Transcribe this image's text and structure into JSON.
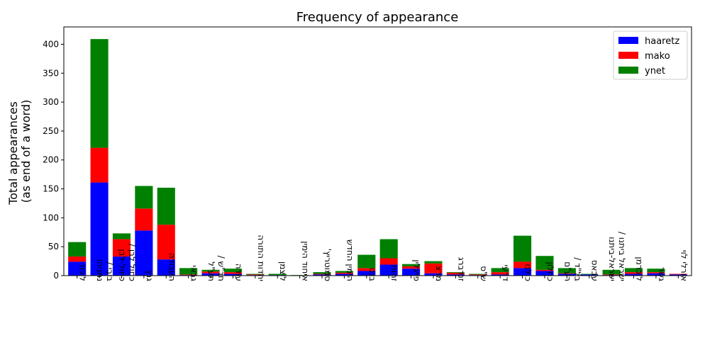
{
  "chart_data": {
    "type": "bar",
    "stacked": true,
    "title": "Frequency of appearance",
    "xlabel": "",
    "ylabel": "Total appearances\n(as end of a word)",
    "ylim": [
      0,
      430
    ],
    "yticks": [
      0,
      50,
      100,
      150,
      200,
      250,
      300,
      350,
      400
    ],
    "legend_position": "top-right",
    "categories": [
      "ליכוד",
      "ביבי / נתניהו",
      "כחול לבן / כחול-לבן",
      "גנץ",
      "העבודה",
      "גבאי",
      "חד\"ש / תע\"ל",
      "עודה",
      "יהדות התורה",
      "ליצמן",
      "איחוד הימין",
      "סמוטריץ'",
      "הימין החדש",
      "בנט",
      "זהות",
      "פייגלין",
      "מרצ",
      "זנדברג",
      "ש\"ס",
      "דרעי",
      "כולנו",
      "כחלון",
      "בל\"ד / רע\"ם",
      "עבאס",
      "ישראל ביתנו / ישראל-ביתנו",
      "ליברמן",
      "גשר",
      "אורלי לוי"
    ],
    "series": [
      {
        "name": "haaretz",
        "color": "#0000ff",
        "values": [
          24,
          161,
          33,
          78,
          28,
          1,
          4,
          3,
          1,
          1,
          0,
          2,
          3,
          8,
          19,
          12,
          4,
          2,
          1,
          2,
          13,
          8,
          3,
          2,
          1,
          3,
          4,
          2
        ]
      },
      {
        "name": "mako",
        "color": "#ff0000",
        "values": [
          9,
          60,
          30,
          38,
          60,
          1,
          3,
          3,
          1,
          0,
          0,
          1,
          2,
          5,
          11,
          4,
          17,
          3,
          1,
          4,
          11,
          2,
          1,
          0,
          1,
          3,
          2,
          1
        ]
      },
      {
        "name": "ynet",
        "color": "#008000",
        "values": [
          25,
          188,
          10,
          39,
          64,
          11,
          3,
          6,
          1,
          2,
          1,
          3,
          3,
          23,
          33,
          4,
          4,
          1,
          1,
          7,
          45,
          24,
          9,
          1,
          8,
          7,
          6,
          0
        ]
      }
    ]
  }
}
